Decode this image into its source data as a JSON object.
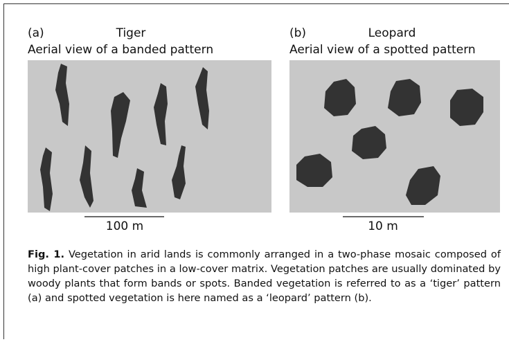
{
  "panels": [
    {
      "label": "(a)",
      "name": "Tiger",
      "subtitle": "Aerial view of a banded pattern",
      "scale": "100 m"
    },
    {
      "label": "(b)",
      "name": "Leopard",
      "subtitle": "Aerial view of a spotted pattern",
      "scale": "10 m"
    }
  ],
  "caption": {
    "label": "Fig. 1.",
    "text": "Vegetation in arid lands is commonly arranged in a two-phase mosaic composed of high plant-cover patches in a low-cover matrix. Vegetation patches are usually dominated by woody plants that form bands or spots. Banded vegetation is referred to as a ‘tiger’ pattern (a) and spotted vegetation is here named as a ‘leopard’ pattern (b)."
  }
}
